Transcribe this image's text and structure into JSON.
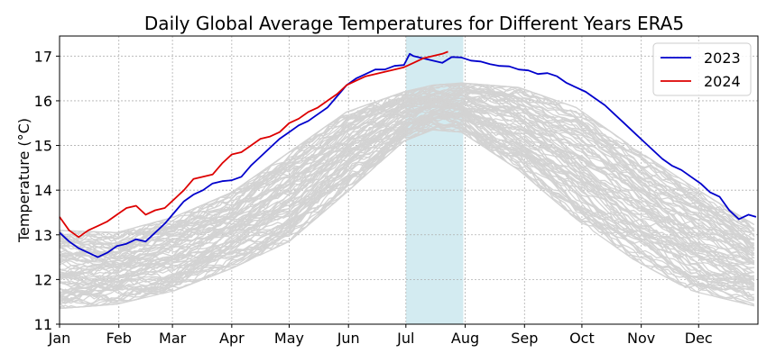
{
  "chart_data": {
    "type": "line",
    "title": "Daily Global Average Temperatures for Different Years ERA5",
    "xlabel": "",
    "ylabel": "Temperature (°C)",
    "ylim": [
      11,
      17.45
    ],
    "xlim_day": [
      0,
      365
    ],
    "yticks": [
      11,
      12,
      13,
      14,
      15,
      16,
      17
    ],
    "xticks": [
      {
        "day": 0,
        "label": "Jan"
      },
      {
        "day": 31,
        "label": "Feb"
      },
      {
        "day": 59,
        "label": "Mar"
      },
      {
        "day": 90,
        "label": "Apr"
      },
      {
        "day": 120,
        "label": "May"
      },
      {
        "day": 151,
        "label": "Jun"
      },
      {
        "day": 181,
        "label": "Jul"
      },
      {
        "day": 212,
        "label": "Aug"
      },
      {
        "day": 243,
        "label": "Sep"
      },
      {
        "day": 273,
        "label": "Oct"
      },
      {
        "day": 304,
        "label": "Nov"
      },
      {
        "day": 334,
        "label": "Dec"
      }
    ],
    "grid": true,
    "legend_position": "top-right",
    "highlight_span": {
      "start_day": 181,
      "end_day": 211,
      "color": "#d3ebf1"
    },
    "series": [
      {
        "name": "2023",
        "color": "#0000cc",
        "x": [
          0,
          5,
          10,
          15,
          20,
          25,
          30,
          35,
          40,
          45,
          50,
          55,
          60,
          65,
          70,
          75,
          80,
          85,
          90,
          95,
          100,
          105,
          110,
          115,
          120,
          125,
          130,
          135,
          140,
          145,
          150,
          155,
          160,
          165,
          170,
          175,
          180,
          183,
          185,
          190,
          195,
          200,
          205,
          210,
          215,
          220,
          225,
          230,
          235,
          240,
          245,
          250,
          255,
          260,
          265,
          270,
          275,
          280,
          285,
          290,
          295,
          300,
          305,
          310,
          315,
          320,
          325,
          330,
          335,
          340,
          345,
          350,
          355,
          360,
          364
        ],
        "values": [
          13.05,
          12.85,
          12.7,
          12.6,
          12.5,
          12.6,
          12.75,
          12.8,
          12.9,
          12.85,
          13.05,
          13.25,
          13.5,
          13.75,
          13.9,
          14.0,
          14.15,
          14.2,
          14.22,
          14.3,
          14.55,
          14.75,
          14.95,
          15.15,
          15.3,
          15.45,
          15.55,
          15.7,
          15.85,
          16.1,
          16.35,
          16.5,
          16.6,
          16.7,
          16.7,
          16.78,
          16.8,
          17.05,
          17.0,
          16.95,
          16.9,
          16.85,
          16.98,
          16.97,
          16.9,
          16.88,
          16.82,
          16.78,
          16.77,
          16.7,
          16.68,
          16.6,
          16.62,
          16.55,
          16.4,
          16.3,
          16.2,
          16.05,
          15.9,
          15.7,
          15.5,
          15.3,
          15.1,
          14.9,
          14.7,
          14.55,
          14.45,
          14.3,
          14.15,
          13.95,
          13.85,
          13.55,
          13.35,
          13.45,
          13.4
        ]
      },
      {
        "name": "2024",
        "color": "#dd0000",
        "x": [
          0,
          5,
          10,
          15,
          20,
          25,
          30,
          35,
          40,
          45,
          50,
          55,
          60,
          65,
          70,
          75,
          80,
          85,
          90,
          95,
          100,
          105,
          110,
          115,
          120,
          125,
          130,
          135,
          140,
          145,
          150,
          155,
          160,
          165,
          170,
          175,
          180,
          185,
          190,
          195,
          200,
          203
        ],
        "values": [
          13.4,
          13.1,
          12.95,
          13.1,
          13.2,
          13.3,
          13.45,
          13.6,
          13.65,
          13.45,
          13.55,
          13.6,
          13.8,
          14.0,
          14.25,
          14.3,
          14.35,
          14.6,
          14.8,
          14.85,
          15.0,
          15.15,
          15.2,
          15.3,
          15.5,
          15.6,
          15.75,
          15.85,
          16.0,
          16.15,
          16.35,
          16.45,
          16.55,
          16.6,
          16.65,
          16.7,
          16.75,
          16.85,
          16.95,
          17.0,
          17.05,
          17.1
        ]
      }
    ],
    "background_band": {
      "label_count": 84,
      "color": "#d3d3d3",
      "x": [
        0,
        30,
        60,
        90,
        120,
        150,
        180,
        195,
        210,
        240,
        270,
        300,
        330,
        364
      ],
      "lower": [
        11.35,
        11.45,
        11.75,
        12.25,
        12.85,
        13.95,
        15.1,
        15.35,
        15.3,
        14.45,
        13.35,
        12.45,
        11.75,
        11.4
      ],
      "upper": [
        13.1,
        13.05,
        13.4,
        13.95,
        14.85,
        15.75,
        16.2,
        16.35,
        16.4,
        16.3,
        15.85,
        14.95,
        14.1,
        13.2
      ]
    }
  }
}
